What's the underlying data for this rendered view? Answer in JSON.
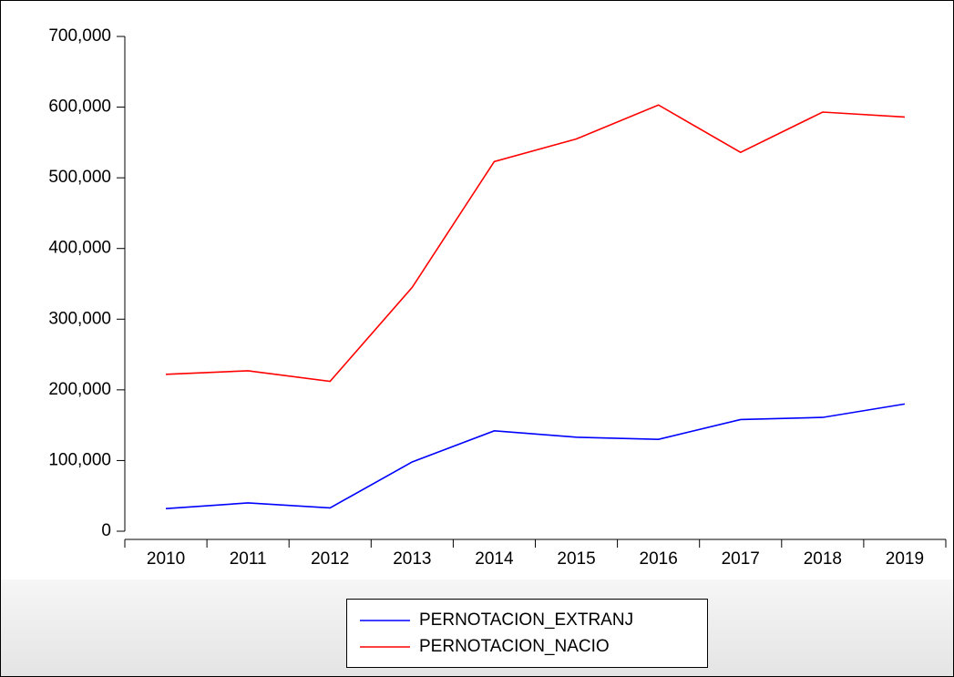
{
  "chart_data": {
    "type": "line",
    "categories": [
      "2010",
      "2011",
      "2012",
      "2013",
      "2014",
      "2015",
      "2016",
      "2017",
      "2018",
      "2019"
    ],
    "series": [
      {
        "name": "PERNOTACION_EXTRANJ",
        "color": "#0000ff",
        "values": [
          32000,
          40000,
          33000,
          98000,
          142000,
          133000,
          130000,
          158000,
          161000,
          180000
        ]
      },
      {
        "name": "PERNOTACION_NACIO",
        "color": "#ff0000",
        "values": [
          222000,
          227000,
          212000,
          345000,
          523000,
          555000,
          603000,
          536000,
          593000,
          586000
        ]
      }
    ],
    "ylim": [
      0,
      700000
    ],
    "yticks": [
      0,
      {
        "value": 100000,
        "label": "100,000"
      },
      {
        "value": 200000,
        "label": "200,000"
      },
      {
        "value": 300000,
        "label": "300,000"
      },
      {
        "value": 400000,
        "label": "400,000"
      },
      {
        "value": 500000,
        "label": "500,000"
      },
      {
        "value": 600000,
        "label": "600,000"
      },
      {
        "value": 700000,
        "label": "700,000"
      }
    ],
    "legend": "bottom"
  }
}
